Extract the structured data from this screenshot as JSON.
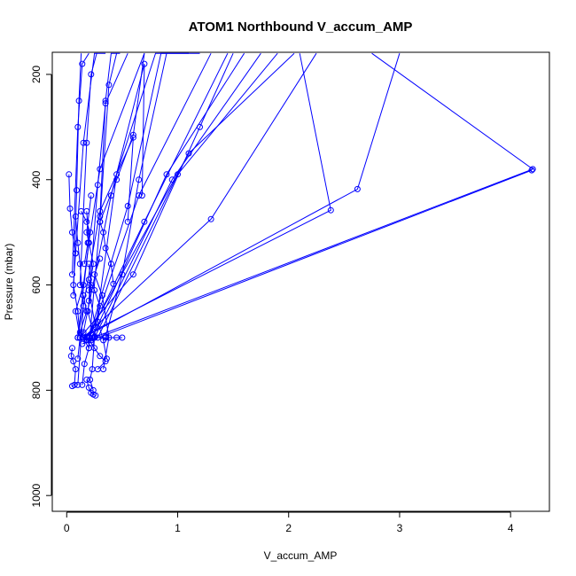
{
  "chart_data": {
    "type": "line",
    "title": "ATOM1 Northbound V_accum_AMP",
    "xlabel": "V_accum_AMP",
    "ylabel": "Pressure (mbar)",
    "xlim": [
      -0.13,
      4.35
    ],
    "ylim": [
      1030,
      158
    ],
    "y_inverted": true,
    "x_ticks": [
      0,
      1,
      2,
      3,
      4
    ],
    "x_tick_labels": [
      "0",
      "1",
      "2",
      "3",
      "4"
    ],
    "y_ticks": [
      200,
      400,
      600,
      800,
      1000
    ],
    "y_tick_labels": [
      "200",
      "400",
      "600",
      "800",
      "1000"
    ],
    "series_color": "#0000ff",
    "marker": "open-circle",
    "grid": false,
    "series": [
      {
        "x": [
          0.02,
          0.03,
          0.05,
          0.08,
          0.06,
          0.1,
          0.12
        ],
        "y": [
          390,
          455,
          500,
          540,
          600,
          650,
          700
        ]
      },
      {
        "x": [
          0.05,
          0.04,
          0.06,
          0.08,
          0.07,
          0.05
        ],
        "y": [
          720,
          735,
          745,
          760,
          790,
          792
        ]
      },
      {
        "x": [
          0.1,
          0.12,
          0.08,
          0.15,
          0.2,
          0.18
        ],
        "y": [
          740,
          700,
          650,
          600,
          520,
          460
        ]
      },
      {
        "x": [
          0.15,
          0.22,
          0.25,
          0.3,
          0.35,
          0.28
        ],
        "y": [
          700,
          710,
          720,
          735,
          745,
          760
        ]
      },
      {
        "x": [
          0.18,
          0.2,
          0.22,
          0.24,
          0.26
        ],
        "y": [
          780,
          795,
          805,
          808,
          810
        ]
      },
      {
        "x": [
          0.13,
          0.18,
          0.21,
          0.19,
          0.16
        ],
        "y": [
          460,
          480,
          500,
          520,
          560
        ]
      },
      {
        "x": [
          0.3,
          0.33,
          0.35,
          0.4,
          0.42
        ],
        "y": [
          480,
          500,
          530,
          560,
          598
        ]
      },
      {
        "x": [
          0.14,
          0.2,
          0.25,
          0.35,
          0.45,
          0.5
        ],
        "y": [
          700,
          700,
          700,
          700,
          700,
          700
        ]
      },
      {
        "x": [
          0.2,
          0.25,
          0.3,
          0.28,
          0.33,
          0.36
        ],
        "y": [
          590,
          610,
          640,
          670,
          705,
          740
        ]
      },
      {
        "x": [
          0.1,
          0.3,
          0.6,
          0.55
        ],
        "y": [
          700,
          460,
          320,
          480
        ]
      },
      {
        "x": [
          0.15,
          0.4,
          0.7,
          0.68
        ],
        "y": [
          690,
          430,
          180,
          430
        ]
      },
      {
        "x": [
          0.2,
          0.55,
          0.85,
          1.1
        ],
        "y": [
          700,
          450,
          160,
          160
        ]
      },
      {
        "x": [
          0.25,
          0.45,
          0.8,
          1.2
        ],
        "y": [
          698,
          390,
          160,
          160
        ]
      },
      {
        "x": [
          0.2,
          0.65,
          1.3
        ],
        "y": [
          705,
          430,
          160
        ]
      },
      {
        "x": [
          0.22,
          0.9,
          1.6
        ],
        "y": [
          705,
          390,
          160
        ]
      },
      {
        "x": [
          0.25,
          0.95,
          1.75
        ],
        "y": [
          700,
          400,
          160
        ]
      },
      {
        "x": [
          0.28,
          1.0,
          1.9
        ],
        "y": [
          700,
          390,
          160
        ]
      },
      {
        "x": [
          0.15,
          1.3,
          2.25
        ],
        "y": [
          700,
          475,
          160
        ]
      },
      {
        "x": [
          0.18,
          1.1,
          2.05
        ],
        "y": [
          700,
          350,
          160
        ]
      },
      {
        "x": [
          0.2,
          0.7,
          1.45
        ],
        "y": [
          698,
          480,
          160
        ]
      },
      {
        "x": [
          0.12,
          0.6,
          1.2,
          1.5
        ],
        "y": [
          700,
          580,
          300,
          160
        ]
      },
      {
        "x": [
          0.1,
          0.2,
          0.3,
          0.7
        ],
        "y": [
          700,
          520,
          380,
          160
        ]
      },
      {
        "x": [
          0.35,
          0.5,
          0.65,
          0.9
        ],
        "y": [
          698,
          580,
          400,
          160
        ]
      },
      {
        "x": [
          0.08,
          0.15,
          0.25,
          0.35
        ],
        "y": [
          540,
          330,
          160,
          160
        ]
      },
      {
        "x": [
          0.12,
          0.18,
          0.22,
          0.27
        ],
        "y": [
          600,
          330,
          200,
          160
        ]
      },
      {
        "x": [
          0.05,
          0.1,
          0.14,
          0.2
        ],
        "y": [
          580,
          300,
          180,
          160
        ]
      },
      {
        "x": [
          0.3,
          0.35,
          0.4,
          0.48
        ],
        "y": [
          470,
          250,
          160,
          160
        ]
      },
      {
        "x": [
          0.2,
          0.3,
          0.38,
          0.45
        ],
        "y": [
          720,
          480,
          220,
          160
        ]
      },
      {
        "x": [
          0.06,
          0.09,
          0.11,
          0.13
        ],
        "y": [
          620,
          420,
          250,
          160
        ]
      },
      {
        "x": [
          0.2,
          0.28,
          0.35,
          0.55
        ],
        "y": [
          630,
          410,
          255,
          160
        ]
      },
      {
        "x": [
          0.3,
          0.45,
          0.6,
          0.7
        ],
        "y": [
          480,
          400,
          315,
          160
        ]
      },
      {
        "x": [
          0.12,
          2.38,
          2.1
        ],
        "y": [
          700,
          458,
          160
        ]
      },
      {
        "x": [
          0.15,
          2.62,
          3.0
        ],
        "y": [
          700,
          418,
          160
        ]
      },
      {
        "x": [
          0.18,
          4.2,
          2.75
        ],
        "y": [
          705,
          380,
          160
        ]
      },
      {
        "x": [
          0.14,
          4.19
        ],
        "y": [
          712,
          382
        ]
      },
      {
        "x": [
          0.2,
          0.22,
          0.19,
          0.25,
          0.23,
          0.21,
          0.24
        ],
        "y": [
          560,
          600,
          650,
          700,
          760,
          780,
          800
        ]
      },
      {
        "x": [
          0.15,
          0.18,
          0.12,
          0.2,
          0.16,
          0.14
        ],
        "y": [
          620,
          650,
          690,
          720,
          750,
          790
        ]
      },
      {
        "x": [
          0.3,
          0.25,
          0.32,
          0.38,
          0.33
        ],
        "y": [
          550,
          580,
          620,
          700,
          760
        ]
      },
      {
        "x": [
          0.08,
          0.1,
          0.12,
          0.15,
          0.1
        ],
        "y": [
          470,
          520,
          560,
          640,
          790
        ]
      },
      {
        "x": [
          0.22,
          0.18,
          0.24,
          0.2,
          0.26
        ],
        "y": [
          430,
          500,
          560,
          610,
          680
        ]
      }
    ]
  }
}
